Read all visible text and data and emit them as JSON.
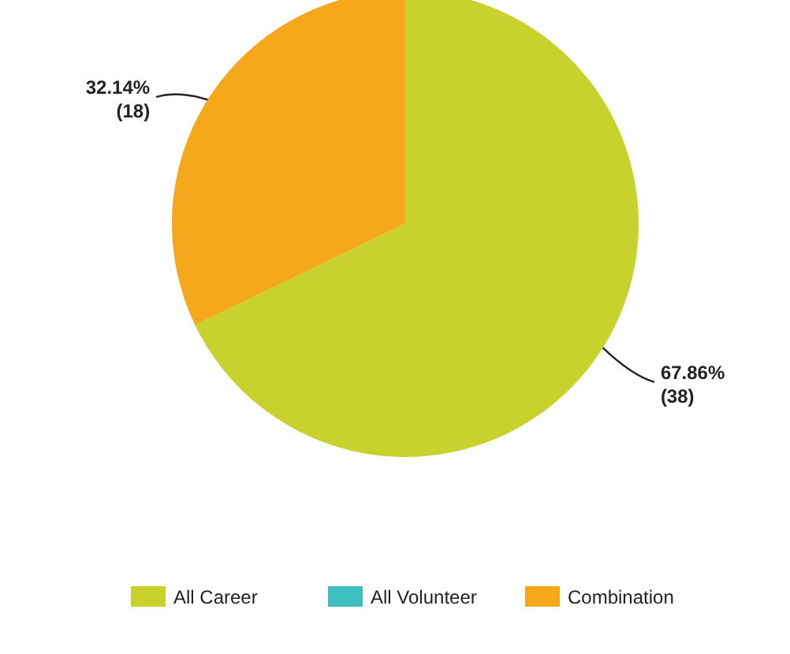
{
  "chart_data": {
    "type": "pie",
    "categories": [
      "All Career",
      "All Volunteer",
      "Combination"
    ],
    "values": [
      38,
      0,
      18
    ],
    "colors": [
      "#c8d22c",
      "#3dbfbf",
      "#f5a81c"
    ],
    "value_labels": [
      "67.86%\n(38)",
      null,
      "32.14%\n(18)"
    ],
    "legend": "bottom"
  }
}
